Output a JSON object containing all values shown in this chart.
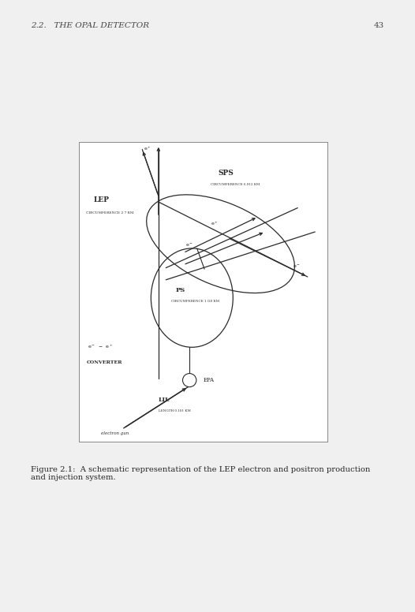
{
  "page_bg": "#f0f0f0",
  "box_bg": "#ffffff",
  "line_color": "#2a2a2a",
  "header_text": "2.2.   THE OPAL DETECTOR",
  "page_num": "43",
  "caption": "Figure 2.1:  A schematic representation of the LEP electron and positron production\nand injection system.",
  "lep_label": "LEP",
  "lep_sub": "CIRCUMFERENCE 2 7 KM",
  "sps_label": "SPS",
  "sps_sub": "CIRCUMFERENCE 6.912 KM",
  "ps_label": "PS",
  "ps_sub": "CIRCUMFERENCE 1 /26 KM",
  "epa_label": "EPA",
  "lil_label": "LIL",
  "lil_sub": "LENGTH 0.101 KM",
  "converter_label": "CONVERTER",
  "egun_label": "electron gun"
}
